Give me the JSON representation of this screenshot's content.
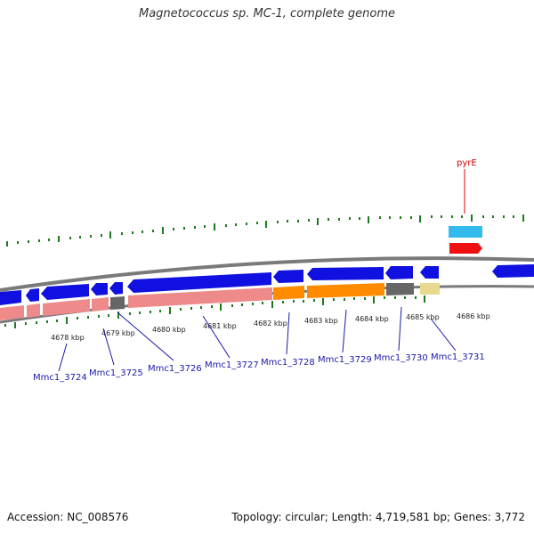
{
  "title": "Magnetococcus sp. MC-1, complete genome",
  "footer": {
    "accession": "Accession: NC_008576",
    "summary": "Topology: circular; Length: 4,719,581 bp; Genes: 3,772"
  },
  "colors": {
    "cds": "#1010e0",
    "gene_pink": "#ee8a8a",
    "gene_orange": "#ff8c00",
    "gene_gray": "#666666",
    "gene_khaki": "#e8d890",
    "feature_cyan": "#33bbee",
    "feature_red": "#ee1111",
    "tick": "#1f7a1f",
    "backbone": "#888888"
  },
  "scale_labels": [
    "4678 kbp",
    "4679 kbp",
    "4680 kbp",
    "4681 kbp",
    "4682 kbp",
    "4683 kbp",
    "4684 kbp",
    "4685 kbp",
    "4686 kbp"
  ],
  "locus_tags": [
    "Mmc1_3724",
    "Mmc1_3725",
    "Mmc1_3726",
    "Mmc1_3727",
    "Mmc1_3728",
    "Mmc1_3729",
    "Mmc1_3730",
    "Mmc1_3731"
  ],
  "feature_label": "pyrE"
}
